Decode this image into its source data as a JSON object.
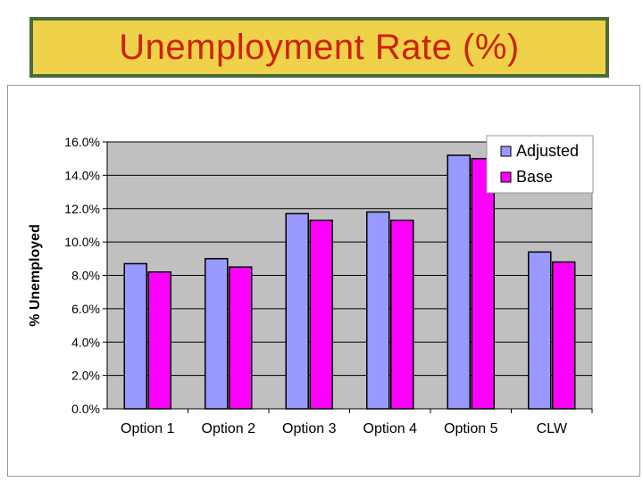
{
  "title": "Unemployment Rate (%)",
  "colors": {
    "title_bg": "#f0d24a",
    "title_border": "#4a6b3a",
    "title_text": "#cc2200",
    "plot_bg": "#c0c0c0",
    "adjusted": "#9999ff",
    "base": "#ff00ff"
  },
  "chart_data": {
    "type": "bar",
    "categories": [
      "Option 1",
      "Option 2",
      "Option 3",
      "Option 4",
      "Option 5",
      "CLW"
    ],
    "series": [
      {
        "name": "Adjusted",
        "values": [
          8.7,
          9.0,
          11.7,
          11.8,
          15.2,
          9.4
        ]
      },
      {
        "name": "Base",
        "values": [
          8.2,
          8.5,
          11.3,
          11.3,
          15.0,
          8.8
        ]
      }
    ],
    "ylabel": "% Unemployed",
    "xlabel": "",
    "ylim": [
      0,
      16
    ],
    "yticks": [
      "0.0%",
      "2.0%",
      "4.0%",
      "6.0%",
      "8.0%",
      "10.0%",
      "12.0%",
      "14.0%",
      "16.0%"
    ],
    "grid": true,
    "legend_position": "top-right"
  }
}
